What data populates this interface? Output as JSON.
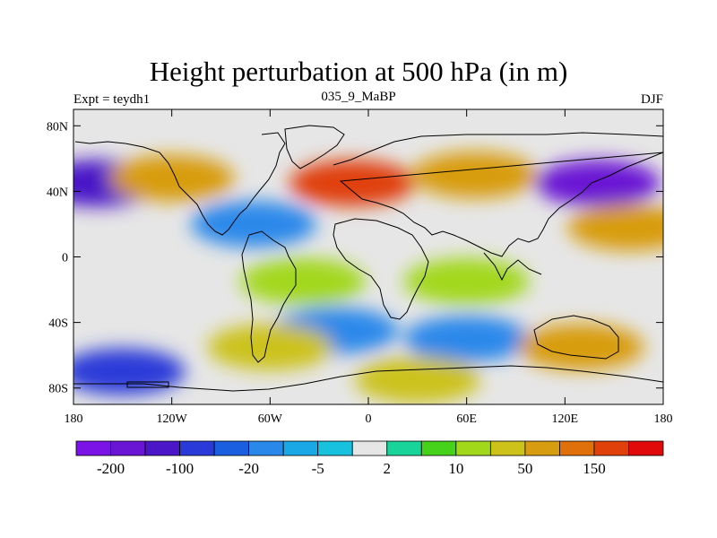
{
  "chart_data": {
    "type": "heatmap",
    "title": "Height perturbation at 500 hPa (in m)",
    "subtitle_left": "Expt = teydh1",
    "subtitle_center": "035_9_MaBP",
    "subtitle_right": "DJF",
    "xlabel": "",
    "ylabel": "",
    "xlim": [
      -180,
      180
    ],
    "ylim": [
      -90,
      90
    ],
    "x_ticks": [
      {
        "value": -180,
        "label": "180"
      },
      {
        "value": -120,
        "label": "120W"
      },
      {
        "value": -60,
        "label": "60W"
      },
      {
        "value": 0,
        "label": "0"
      },
      {
        "value": 60,
        "label": "60E"
      },
      {
        "value": 120,
        "label": "120E"
      },
      {
        "value": 180,
        "label": "180"
      }
    ],
    "y_ticks": [
      {
        "value": 80,
        "label": "80N"
      },
      {
        "value": 40,
        "label": "40N"
      },
      {
        "value": 0,
        "label": "0"
      },
      {
        "value": -40,
        "label": "40S"
      },
      {
        "value": -80,
        "label": "80S"
      }
    ],
    "colorbar": {
      "colors": [
        "#7b13e6",
        "#6a14d4",
        "#4a16c8",
        "#2a3ad8",
        "#1a5fe0",
        "#2a88ea",
        "#1aa8e6",
        "#18c2de",
        "#e6e6e6",
        "#18d49a",
        "#46d21a",
        "#a2d81a",
        "#ccc21a",
        "#d89c10",
        "#e0700a",
        "#e0400a",
        "#e00a0a"
      ],
      "labels": [
        {
          "after_box": 1,
          "text": "-200"
        },
        {
          "after_box": 3,
          "text": "-100"
        },
        {
          "after_box": 5,
          "text": "-20"
        },
        {
          "after_box": 7,
          "text": "-5"
        },
        {
          "after_box": 9,
          "text": "2"
        },
        {
          "after_box": 11,
          "text": "10"
        },
        {
          "after_box": 13,
          "text": "50"
        },
        {
          "after_box": 15,
          "text": "150"
        }
      ]
    },
    "field_features": [
      {
        "lon": -165,
        "lat": 45,
        "level": 2
      },
      {
        "lon": -120,
        "lat": 48,
        "level": 13
      },
      {
        "lon": -70,
        "lat": 20,
        "level": 5
      },
      {
        "lon": -10,
        "lat": 45,
        "level": 15
      },
      {
        "lon": 65,
        "lat": 50,
        "level": 13
      },
      {
        "lon": 140,
        "lat": 45,
        "level": 1
      },
      {
        "lon": 160,
        "lat": 18,
        "level": 13
      },
      {
        "lon": -40,
        "lat": -15,
        "level": 11
      },
      {
        "lon": 60,
        "lat": -15,
        "level": 11
      },
      {
        "lon": -20,
        "lat": -45,
        "level": 5
      },
      {
        "lon": 60,
        "lat": -50,
        "level": 5
      },
      {
        "lon": 130,
        "lat": -55,
        "level": 13
      },
      {
        "lon": -150,
        "lat": -70,
        "level": 3
      },
      {
        "lon": -60,
        "lat": -55,
        "level": 12
      },
      {
        "lon": 30,
        "lat": -75,
        "level": 12
      }
    ]
  }
}
